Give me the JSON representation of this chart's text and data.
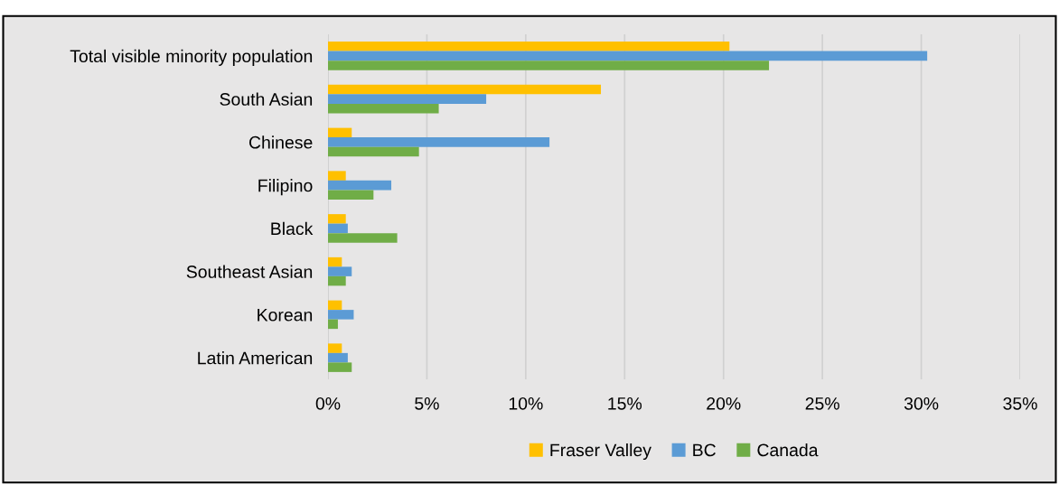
{
  "chart_data": {
    "type": "bar",
    "orientation": "horizontal",
    "categories": [
      "Total visible minority population",
      "South Asian",
      "Chinese",
      "Filipino",
      "Black",
      "Southeast Asian",
      "Korean",
      "Latin American"
    ],
    "series": [
      {
        "name": "Fraser Valley",
        "color": "#ffc000",
        "values": [
          20.3,
          13.8,
          1.2,
          0.9,
          0.9,
          0.7,
          0.7,
          0.7
        ]
      },
      {
        "name": "BC",
        "color": "#5b9bd5",
        "values": [
          30.3,
          8.0,
          11.2,
          3.2,
          1.0,
          1.2,
          1.3,
          1.0
        ]
      },
      {
        "name": "Canada",
        "color": "#70ad47",
        "values": [
          22.3,
          5.6,
          4.6,
          2.3,
          3.5,
          0.9,
          0.5,
          1.2
        ]
      }
    ],
    "xlim": [
      0,
      35
    ],
    "xticks": [
      {
        "value": 0,
        "label": "0%"
      },
      {
        "value": 5,
        "label": "5%"
      },
      {
        "value": 10,
        "label": "10%"
      },
      {
        "value": 15,
        "label": "15%"
      },
      {
        "value": 20,
        "label": "20%"
      },
      {
        "value": 25,
        "label": "25%"
      },
      {
        "value": 30,
        "label": "30%"
      },
      {
        "value": 35,
        "label": "35%"
      }
    ],
    "grid": "x",
    "legend": "bottom"
  }
}
